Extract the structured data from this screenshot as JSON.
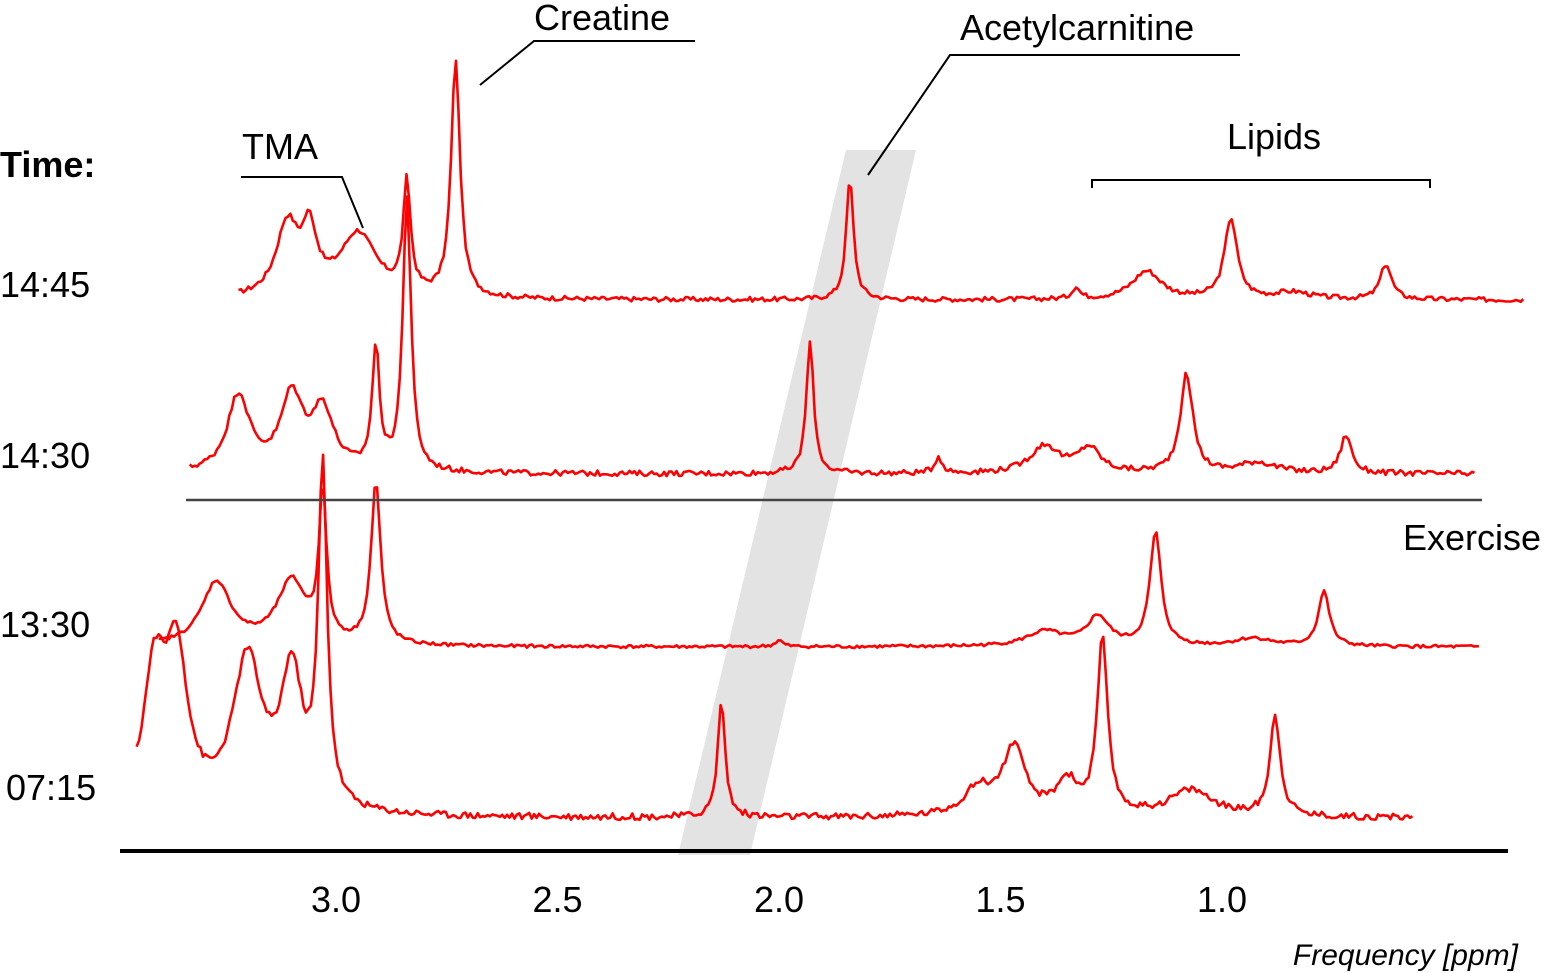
{
  "chart_data": {
    "type": "line",
    "xlabel": "Frequency [ppm]",
    "x_reversed": true,
    "xlim": [
      3.45,
      0.3
    ],
    "x_ticks": [
      {
        "value": 3.0,
        "label": "3.0"
      },
      {
        "value": 2.5,
        "label": "2.5"
      },
      {
        "value": 2.0,
        "label": "2.0"
      },
      {
        "value": 1.5,
        "label": "1.5"
      },
      {
        "value": 1.0,
        "label": "1.0"
      }
    ],
    "time_heading": "Time:",
    "exercise_label": "Exercise",
    "line_color": "#ff0000",
    "highlight_color": "#e3e3e3",
    "series": [
      {
        "name": "14:45",
        "x_range": [
          3.22,
          0.32
        ],
        "peaks": [
          {
            "x": 3.11,
            "height": 0.3,
            "width": 0.03
          },
          {
            "x": 3.06,
            "height": 0.25,
            "width": 0.02
          },
          {
            "x": 2.95,
            "height": 0.27,
            "width": 0.05
          },
          {
            "x": 2.84,
            "height": 0.46,
            "width": 0.01
          },
          {
            "x": 2.73,
            "height": 1.0,
            "width": 0.012
          },
          {
            "x": 1.84,
            "height": 0.51,
            "width": 0.01
          },
          {
            "x": 1.33,
            "height": 0.05,
            "width": 0.01
          },
          {
            "x": 1.17,
            "height": 0.12,
            "width": 0.04
          },
          {
            "x": 0.98,
            "height": 0.34,
            "width": 0.017
          },
          {
            "x": 0.84,
            "height": 0.03,
            "width": 0.05
          },
          {
            "x": 0.63,
            "height": 0.15,
            "width": 0.015
          }
        ]
      },
      {
        "name": "14:30",
        "x_range": [
          3.33,
          0.43
        ],
        "peaks": [
          {
            "x": 3.22,
            "height": 0.28,
            "width": 0.03
          },
          {
            "x": 3.1,
            "height": 0.27,
            "width": 0.03
          },
          {
            "x": 3.03,
            "height": 0.22,
            "width": 0.03
          },
          {
            "x": 2.91,
            "height": 0.44,
            "width": 0.01
          },
          {
            "x": 2.84,
            "height": 1.0,
            "width": 0.011
          },
          {
            "x": 1.93,
            "height": 0.48,
            "width": 0.01
          },
          {
            "x": 1.64,
            "height": 0.06,
            "width": 0.01
          },
          {
            "x": 1.4,
            "height": 0.1,
            "width": 0.04
          },
          {
            "x": 1.3,
            "height": 0.09,
            "width": 0.03
          },
          {
            "x": 1.08,
            "height": 0.36,
            "width": 0.017
          },
          {
            "x": 0.92,
            "height": 0.04,
            "width": 0.05
          },
          {
            "x": 0.72,
            "height": 0.14,
            "width": 0.015
          }
        ]
      },
      {
        "name": "13:30",
        "x_range": [
          3.4,
          0.42
        ],
        "peaks": [
          {
            "x": 3.27,
            "height": 0.39,
            "width": 0.04
          },
          {
            "x": 3.1,
            "height": 0.39,
            "width": 0.04
          },
          {
            "x": 3.03,
            "height": 0.91,
            "width": 0.01
          },
          {
            "x": 2.91,
            "height": 1.0,
            "width": 0.013
          },
          {
            "x": 2.0,
            "height": 0.04,
            "width": 0.01
          },
          {
            "x": 1.4,
            "height": 0.09,
            "width": 0.05
          },
          {
            "x": 1.28,
            "height": 0.18,
            "width": 0.03
          },
          {
            "x": 1.15,
            "height": 0.7,
            "width": 0.015
          },
          {
            "x": 0.93,
            "height": 0.05,
            "width": 0.05
          },
          {
            "x": 0.77,
            "height": 0.34,
            "width": 0.015
          }
        ]
      },
      {
        "name": "07:15",
        "x_range": [
          3.45,
          0.57
        ],
        "peaks": [
          {
            "x": 3.41,
            "height": 0.4,
            "width": 0.03
          },
          {
            "x": 3.36,
            "height": 0.45,
            "width": 0.03
          },
          {
            "x": 3.2,
            "height": 0.45,
            "width": 0.04
          },
          {
            "x": 3.1,
            "height": 0.4,
            "width": 0.03
          },
          {
            "x": 3.03,
            "height": 1.0,
            "width": 0.012
          },
          {
            "x": 2.13,
            "height": 0.35,
            "width": 0.01
          },
          {
            "x": 1.55,
            "height": 0.08,
            "width": 0.04
          },
          {
            "x": 1.47,
            "height": 0.2,
            "width": 0.03
          },
          {
            "x": 1.35,
            "height": 0.1,
            "width": 0.03
          },
          {
            "x": 1.27,
            "height": 0.52,
            "width": 0.014
          },
          {
            "x": 1.07,
            "height": 0.08,
            "width": 0.06
          },
          {
            "x": 0.88,
            "height": 0.3,
            "width": 0.014
          }
        ]
      }
    ],
    "annotations": [
      {
        "label": "Creatine"
      },
      {
        "label": "TMA"
      },
      {
        "label": "Acetylcarnitine"
      },
      {
        "label": "Lipids"
      }
    ]
  }
}
